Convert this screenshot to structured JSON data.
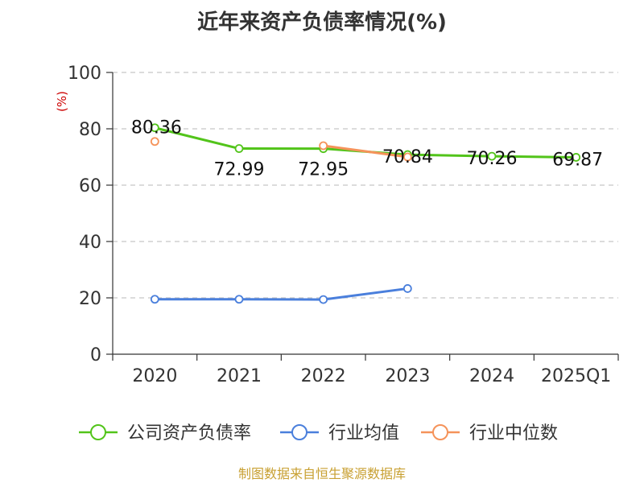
{
  "chart_data": {
    "type": "line",
    "title": "近年来资产负债率情况(%)",
    "ylabel": "(%)",
    "xlabel": "",
    "categories": [
      "2020",
      "2021",
      "2022",
      "2023",
      "2024",
      "2025Q1"
    ],
    "ylim": [
      0,
      100
    ],
    "yticks": [
      0,
      20,
      40,
      60,
      80,
      100
    ],
    "grid": true,
    "legend_position": "bottom",
    "series": [
      {
        "name": "公司资产负债率",
        "color": "#52c41a",
        "values": [
          80.36,
          72.99,
          72.95,
          70.84,
          70.26,
          69.87
        ],
        "labels": [
          "80.36",
          "72.99",
          "72.95",
          "70.84",
          "70.26",
          "69.87"
        ]
      },
      {
        "name": "行业均值",
        "color": "#4a7fdc",
        "values": [
          19.5,
          19.5,
          19.4,
          23.3,
          null,
          null
        ]
      },
      {
        "name": "行业中位数",
        "color": "#f5935a",
        "values": [
          75.5,
          null,
          74.0,
          70.0,
          null,
          null
        ]
      }
    ]
  },
  "source": "制图数据来自恒生聚源数据库"
}
